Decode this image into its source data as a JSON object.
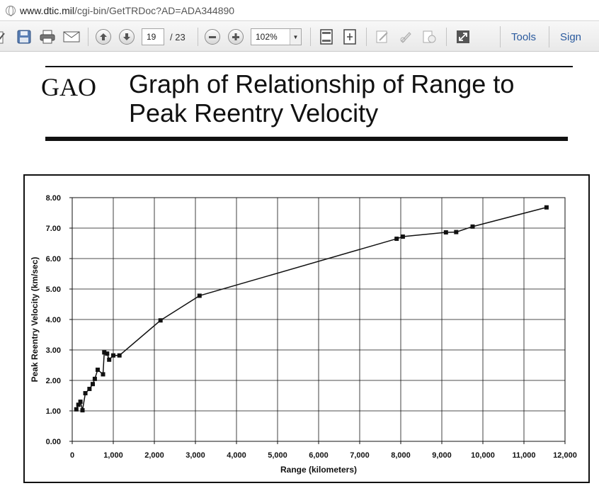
{
  "browser": {
    "url_host": "www.dtic.mil",
    "url_path": "/cgi-bin/GetTRDoc?AD=ADA344890"
  },
  "toolbar": {
    "page_current": "19",
    "page_total": "/ 23",
    "zoom": "102%",
    "tools_label": "Tools",
    "sign_label": "Sign"
  },
  "document": {
    "org": "GAO",
    "title_line1": "Graph of Relationship of Range to",
    "title_line2": "Peak Reentry Velocity"
  },
  "chart_data": {
    "type": "line",
    "title": "",
    "xlabel": "Range (kilometers)",
    "ylabel": "Peak Reentry Velocity (km/sec)",
    "xlim": [
      0,
      12000
    ],
    "ylim": [
      0,
      8
    ],
    "x_ticks": [
      0,
      1000,
      2000,
      3000,
      4000,
      5000,
      6000,
      7000,
      8000,
      9000,
      10000,
      11000,
      12000
    ],
    "x_tick_labels": [
      "0",
      "1,000",
      "2,000",
      "3,000",
      "4,000",
      "5,000",
      "6,000",
      "7,000",
      "8,000",
      "9,000",
      "10,000",
      "11,000",
      "12,000"
    ],
    "y_ticks": [
      0,
      1,
      2,
      3,
      4,
      5,
      6,
      7,
      8
    ],
    "y_tick_labels": [
      "0.00",
      "1.00",
      "2.00",
      "3.00",
      "4.00",
      "5.00",
      "6.00",
      "7.00",
      "8.00"
    ],
    "grid": true,
    "series": [
      {
        "points": [
          [
            100,
            1.05
          ],
          [
            150,
            1.2
          ],
          [
            200,
            1.3
          ],
          [
            250,
            1.02
          ],
          [
            320,
            1.58
          ],
          [
            420,
            1.72
          ],
          [
            500,
            1.88
          ],
          [
            550,
            2.05
          ],
          [
            620,
            2.35
          ],
          [
            750,
            2.2
          ],
          [
            780,
            2.92
          ],
          [
            850,
            2.88
          ],
          [
            900,
            2.68
          ],
          [
            1000,
            2.82
          ],
          [
            1150,
            2.82
          ],
          [
            2150,
            3.97
          ],
          [
            3100,
            4.78
          ],
          [
            7900,
            6.65
          ],
          [
            8050,
            6.72
          ],
          [
            9100,
            6.86
          ],
          [
            9350,
            6.87
          ],
          [
            9750,
            7.05
          ],
          [
            11550,
            7.68
          ]
        ]
      }
    ]
  },
  "colors": {
    "line": "#111111",
    "grid": "#111111",
    "toolbar_text": "#2a5a9e"
  }
}
